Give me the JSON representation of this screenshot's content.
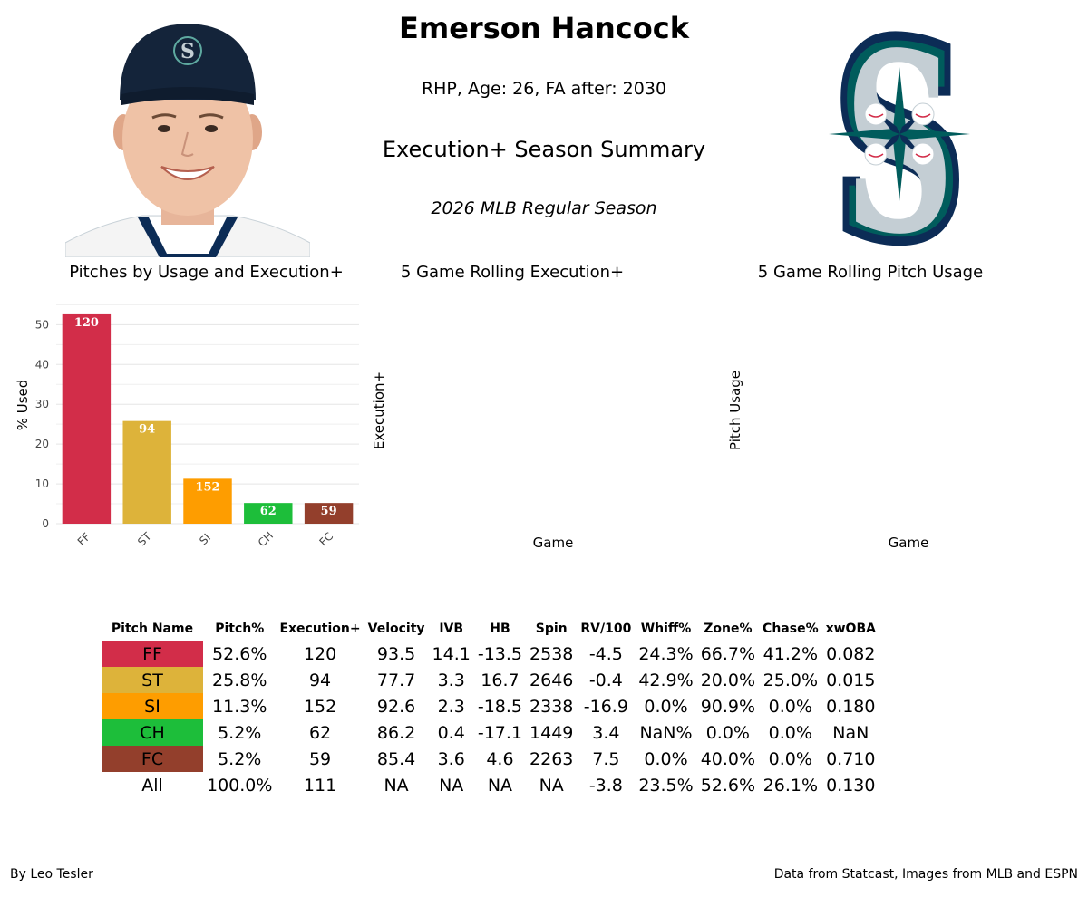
{
  "header": {
    "player_name": "Emerson Hancock",
    "player_info": "RHP, Age: 26, FA after: 2030",
    "summary_title": "Execution+ Season Summary",
    "season": "2026 MLB Regular Season"
  },
  "colors": {
    "FF": "#d22d49",
    "ST": "#ddb33a",
    "SI": "#fe9d00",
    "CH": "#1dbe3a",
    "FC": "#933f2c",
    "mariners_navy": "#0c2c56",
    "mariners_teal": "#005c5c",
    "mariners_silver": "#c4ced4"
  },
  "chart_data": [
    {
      "type": "bar",
      "title": "Pitches by Usage and Execution+",
      "xlabel": "",
      "ylabel": "% Used",
      "ylim": [
        0,
        56
      ],
      "yticks": [
        0,
        10,
        20,
        30,
        40,
        50
      ],
      "grid": true,
      "categories": [
        "FF",
        "ST",
        "SI",
        "CH",
        "FC"
      ],
      "values": [
        52.6,
        25.8,
        11.3,
        5.2,
        5.2
      ],
      "labels": [
        "120",
        "94",
        "152",
        "62",
        "59"
      ]
    },
    {
      "type": "line",
      "title": "5 Game Rolling Execution+",
      "xlabel": "Game",
      "ylabel": "Execution+",
      "series": []
    },
    {
      "type": "line",
      "title": "5 Game Rolling Pitch Usage",
      "xlabel": "Game",
      "ylabel": "Pitch Usage",
      "series": []
    }
  ],
  "table": {
    "columns": [
      "Pitch Name",
      "Pitch%",
      "Execution+",
      "Velocity",
      "IVB",
      "HB",
      "Spin",
      "RV/100",
      "Whiff%",
      "Zone%",
      "Chase%",
      "xwOBA"
    ],
    "rows": [
      [
        "FF",
        "52.6%",
        "120",
        "93.5",
        "14.1",
        "-13.5",
        "2538",
        "-4.5",
        "24.3%",
        "66.7%",
        "41.2%",
        "0.082"
      ],
      [
        "ST",
        "25.8%",
        "94",
        "77.7",
        "3.3",
        "16.7",
        "2646",
        "-0.4",
        "42.9%",
        "20.0%",
        "25.0%",
        "0.015"
      ],
      [
        "SI",
        "11.3%",
        "152",
        "92.6",
        "2.3",
        "-18.5",
        "2338",
        "-16.9",
        "0.0%",
        "90.9%",
        "0.0%",
        "0.180"
      ],
      [
        "CH",
        "5.2%",
        "62",
        "86.2",
        "0.4",
        "-17.1",
        "1449",
        "3.4",
        "NaN%",
        "0.0%",
        "0.0%",
        "NaN"
      ],
      [
        "FC",
        "5.2%",
        "59",
        "85.4",
        "3.6",
        "4.6",
        "2263",
        "7.5",
        "0.0%",
        "40.0%",
        "0.0%",
        "0.710"
      ],
      [
        "All",
        "100.0%",
        "111",
        "NA",
        "NA",
        "NA",
        "NA",
        "-3.8",
        "23.5%",
        "52.6%",
        "26.1%",
        "0.130"
      ]
    ]
  },
  "footer": {
    "left": "By Leo Tesler",
    "right": "Data from Statcast, Images from MLB and ESPN"
  },
  "images": {
    "headshot": "player-headshot",
    "logo": "seattle-mariners-logo"
  }
}
